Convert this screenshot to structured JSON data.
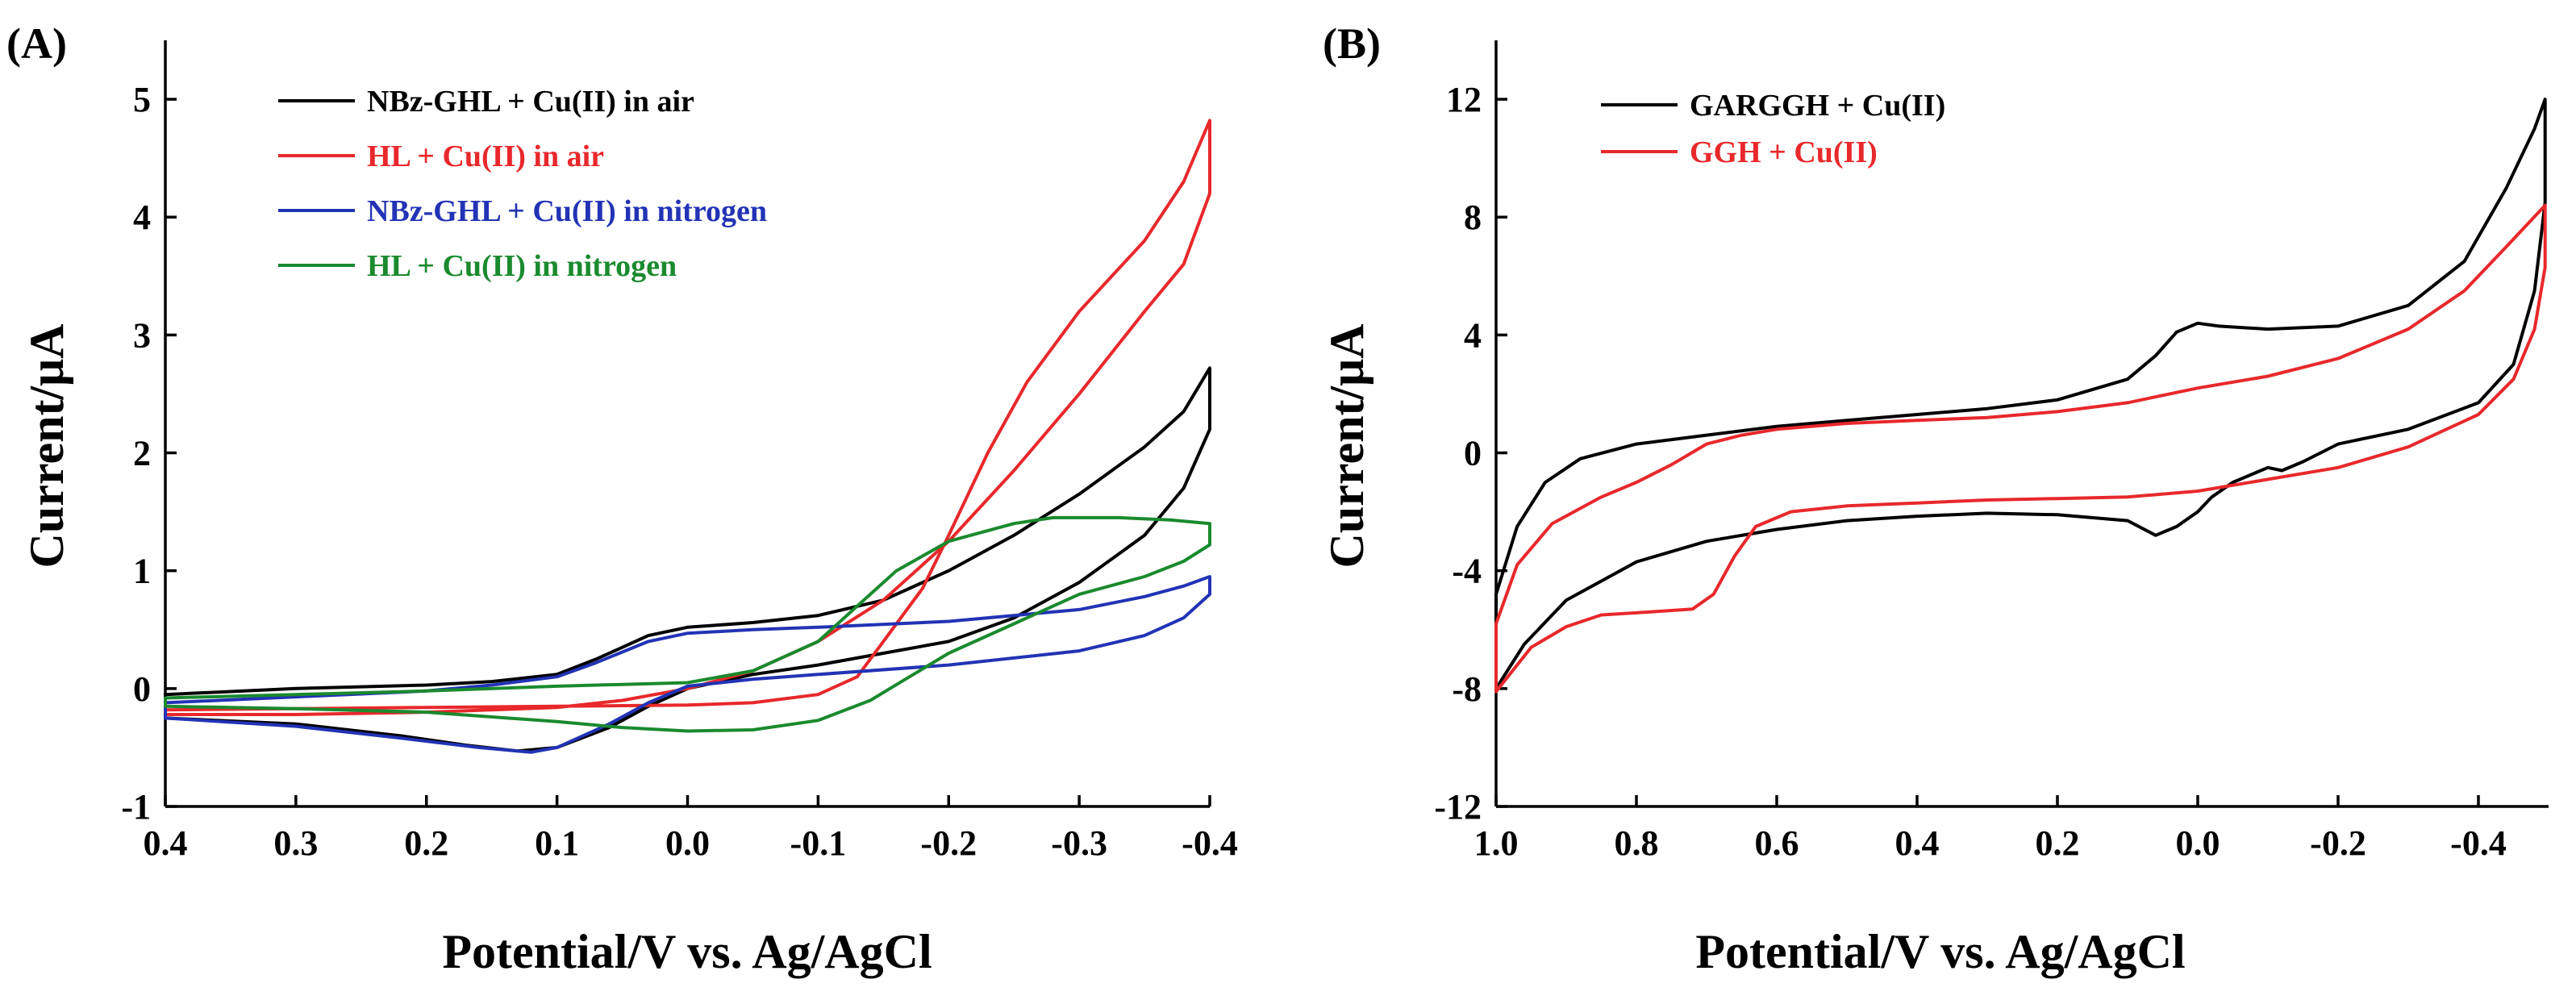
{
  "chart_data": [
    {
      "panel_label": "(A)",
      "type": "line",
      "xlabel": "Potential/V vs. Ag/AgCl",
      "ylabel": "Current/μA",
      "xlim": [
        0.4,
        -0.4
      ],
      "ylim": [
        -1,
        5.5
      ],
      "xticks": [
        0.4,
        0.3,
        0.2,
        0.1,
        0.0,
        -0.1,
        -0.2,
        -0.3,
        -0.4
      ],
      "xtick_labels": [
        "0.4",
        "0.3",
        "0.2",
        "0.1",
        "0.0",
        "-0.1",
        "-0.2",
        "-0.3",
        "-0.4"
      ],
      "yticks": [
        -1,
        0,
        1,
        2,
        3,
        4,
        5
      ],
      "ytick_labels": [
        "-1",
        "0",
        "1",
        "2",
        "3",
        "4",
        "5"
      ],
      "legend_position": "top-left",
      "series": [
        {
          "name": "NBz-GHL + Cu(II) in air",
          "color": "#000000",
          "points": [
            [
              0.4,
              -0.05
            ],
            [
              0.3,
              0.0
            ],
            [
              0.2,
              0.03
            ],
            [
              0.15,
              0.06
            ],
            [
              0.1,
              0.12
            ],
            [
              0.07,
              0.25
            ],
            [
              0.03,
              0.45
            ],
            [
              0.0,
              0.52
            ],
            [
              -0.05,
              0.56
            ],
            [
              -0.1,
              0.62
            ],
            [
              -0.15,
              0.75
            ],
            [
              -0.2,
              1.0
            ],
            [
              -0.25,
              1.3
            ],
            [
              -0.3,
              1.65
            ],
            [
              -0.35,
              2.05
            ],
            [
              -0.38,
              2.35
            ],
            [
              -0.4,
              2.72
            ],
            [
              -0.4,
              2.2
            ],
            [
              -0.38,
              1.7
            ],
            [
              -0.35,
              1.3
            ],
            [
              -0.3,
              0.9
            ],
            [
              -0.25,
              0.6
            ],
            [
              -0.2,
              0.4
            ],
            [
              -0.15,
              0.3
            ],
            [
              -0.1,
              0.2
            ],
            [
              -0.05,
              0.12
            ],
            [
              0.0,
              0.0
            ],
            [
              0.03,
              -0.15
            ],
            [
              0.06,
              -0.33
            ],
            [
              0.1,
              -0.5
            ],
            [
              0.13,
              -0.53
            ],
            [
              0.17,
              -0.48
            ],
            [
              0.22,
              -0.4
            ],
            [
              0.3,
              -0.3
            ],
            [
              0.4,
              -0.25
            ]
          ]
        },
        {
          "name": "HL + Cu(II) in air",
          "color": "#e8282b",
          "points": [
            [
              0.4,
              -0.18
            ],
            [
              0.3,
              -0.17
            ],
            [
              0.2,
              -0.16
            ],
            [
              0.1,
              -0.15
            ],
            [
              0.0,
              -0.14
            ],
            [
              -0.05,
              -0.12
            ],
            [
              -0.1,
              -0.05
            ],
            [
              -0.13,
              0.1
            ],
            [
              -0.15,
              0.4
            ],
            [
              -0.18,
              0.85
            ],
            [
              -0.2,
              1.3
            ],
            [
              -0.23,
              2.0
            ],
            [
              -0.26,
              2.6
            ],
            [
              -0.3,
              3.2
            ],
            [
              -0.35,
              3.8
            ],
            [
              -0.38,
              4.3
            ],
            [
              -0.4,
              4.82
            ],
            [
              -0.4,
              4.2
            ],
            [
              -0.38,
              3.6
            ],
            [
              -0.35,
              3.2
            ],
            [
              -0.3,
              2.5
            ],
            [
              -0.25,
              1.85
            ],
            [
              -0.2,
              1.25
            ],
            [
              -0.15,
              0.75
            ],
            [
              -0.1,
              0.4
            ],
            [
              -0.05,
              0.15
            ],
            [
              0.0,
              0.0
            ],
            [
              0.05,
              -0.1
            ],
            [
              0.1,
              -0.16
            ],
            [
              0.2,
              -0.2
            ],
            [
              0.3,
              -0.22
            ],
            [
              0.4,
              -0.22
            ]
          ]
        },
        {
          "name": "NBz-GHL + Cu(II) in nitrogen",
          "color": "#2233b5",
          "points": [
            [
              0.4,
              -0.12
            ],
            [
              0.3,
              -0.07
            ],
            [
              0.2,
              -0.02
            ],
            [
              0.15,
              0.03
            ],
            [
              0.1,
              0.1
            ],
            [
              0.07,
              0.22
            ],
            [
              0.03,
              0.4
            ],
            [
              0.0,
              0.47
            ],
            [
              -0.05,
              0.5
            ],
            [
              -0.1,
              0.52
            ],
            [
              -0.2,
              0.57
            ],
            [
              -0.3,
              0.67
            ],
            [
              -0.35,
              0.78
            ],
            [
              -0.38,
              0.87
            ],
            [
              -0.4,
              0.95
            ],
            [
              -0.4,
              0.8
            ],
            [
              -0.38,
              0.6
            ],
            [
              -0.35,
              0.45
            ],
            [
              -0.3,
              0.32
            ],
            [
              -0.2,
              0.2
            ],
            [
              -0.1,
              0.12
            ],
            [
              -0.05,
              0.08
            ],
            [
              0.0,
              0.02
            ],
            [
              0.03,
              -0.12
            ],
            [
              0.06,
              -0.3
            ],
            [
              0.1,
              -0.5
            ],
            [
              0.12,
              -0.54
            ],
            [
              0.16,
              -0.5
            ],
            [
              0.22,
              -0.42
            ],
            [
              0.3,
              -0.32
            ],
            [
              0.4,
              -0.25
            ]
          ]
        },
        {
          "name": "HL + Cu(II) in nitrogen",
          "color": "#1a8a2e",
          "points": [
            [
              0.4,
              -0.08
            ],
            [
              0.3,
              -0.05
            ],
            [
              0.2,
              -0.02
            ],
            [
              0.1,
              0.02
            ],
            [
              0.0,
              0.05
            ],
            [
              -0.05,
              0.15
            ],
            [
              -0.1,
              0.4
            ],
            [
              -0.13,
              0.7
            ],
            [
              -0.16,
              1.0
            ],
            [
              -0.2,
              1.25
            ],
            [
              -0.25,
              1.4
            ],
            [
              -0.28,
              1.45
            ],
            [
              -0.33,
              1.45
            ],
            [
              -0.37,
              1.43
            ],
            [
              -0.4,
              1.4
            ],
            [
              -0.4,
              1.22
            ],
            [
              -0.38,
              1.08
            ],
            [
              -0.35,
              0.95
            ],
            [
              -0.3,
              0.8
            ],
            [
              -0.25,
              0.55
            ],
            [
              -0.2,
              0.3
            ],
            [
              -0.17,
              0.1
            ],
            [
              -0.14,
              -0.1
            ],
            [
              -0.1,
              -0.27
            ],
            [
              -0.05,
              -0.35
            ],
            [
              0.0,
              -0.36
            ],
            [
              0.05,
              -0.33
            ],
            [
              0.1,
              -0.28
            ],
            [
              0.2,
              -0.2
            ],
            [
              0.3,
              -0.17
            ],
            [
              0.4,
              -0.15
            ]
          ]
        }
      ]
    },
    {
      "panel_label": "(B)",
      "type": "line",
      "xlabel": "Potential/V vs. Ag/AgCl",
      "ylabel": "Current/μA",
      "xlim": [
        1.0,
        -0.5
      ],
      "ylim": [
        -12,
        14
      ],
      "xticks": [
        1.0,
        0.8,
        0.6,
        0.4,
        0.2,
        0.0,
        -0.2,
        -0.4
      ],
      "xtick_labels": [
        "1.0",
        "0.8",
        "0.6",
        "0.4",
        "0.2",
        "0.0",
        "-0.2",
        "-0.4"
      ],
      "yticks": [
        -12,
        -8,
        -4,
        0,
        4,
        8,
        12
      ],
      "ytick_labels": [
        "-12",
        "-8",
        "-4",
        "0",
        "4",
        "8",
        "12"
      ],
      "legend_position": "top-left",
      "series": [
        {
          "name": "GARGGH + Cu(II)",
          "color": "#000000",
          "points": [
            [
              1.0,
              -4.8
            ],
            [
              0.97,
              -2.5
            ],
            [
              0.93,
              -1.0
            ],
            [
              0.88,
              -0.2
            ],
            [
              0.8,
              0.3
            ],
            [
              0.7,
              0.6
            ],
            [
              0.6,
              0.9
            ],
            [
              0.5,
              1.1
            ],
            [
              0.4,
              1.3
            ],
            [
              0.3,
              1.5
            ],
            [
              0.2,
              1.8
            ],
            [
              0.1,
              2.5
            ],
            [
              0.06,
              3.3
            ],
            [
              0.03,
              4.1
            ],
            [
              0.0,
              4.4
            ],
            [
              -0.03,
              4.3
            ],
            [
              -0.1,
              4.2
            ],
            [
              -0.2,
              4.3
            ],
            [
              -0.3,
              5.0
            ],
            [
              -0.38,
              6.5
            ],
            [
              -0.44,
              9.0
            ],
            [
              -0.48,
              11.0
            ],
            [
              -0.495,
              12.0
            ],
            [
              -0.495,
              8.5
            ],
            [
              -0.48,
              5.5
            ],
            [
              -0.45,
              3.0
            ],
            [
              -0.4,
              1.7
            ],
            [
              -0.3,
              0.8
            ],
            [
              -0.2,
              0.3
            ],
            [
              -0.15,
              -0.3
            ],
            [
              -0.12,
              -0.6
            ],
            [
              -0.1,
              -0.5
            ],
            [
              -0.08,
              -0.7
            ],
            [
              -0.05,
              -1.0
            ],
            [
              -0.02,
              -1.5
            ],
            [
              0.0,
              -2.0
            ],
            [
              0.03,
              -2.5
            ],
            [
              0.06,
              -2.8
            ],
            [
              0.1,
              -2.3
            ],
            [
              0.2,
              -2.1
            ],
            [
              0.3,
              -2.05
            ],
            [
              0.4,
              -2.15
            ],
            [
              0.5,
              -2.3
            ],
            [
              0.6,
              -2.6
            ],
            [
              0.7,
              -3.0
            ],
            [
              0.8,
              -3.7
            ],
            [
              0.9,
              -5.0
            ],
            [
              0.96,
              -6.5
            ],
            [
              1.0,
              -8.0
            ]
          ]
        },
        {
          "name": "GGH + Cu(II)",
          "color": "#e8282b",
          "points": [
            [
              1.0,
              -5.8
            ],
            [
              0.97,
              -3.8
            ],
            [
              0.92,
              -2.4
            ],
            [
              0.85,
              -1.5
            ],
            [
              0.8,
              -1.0
            ],
            [
              0.75,
              -0.4
            ],
            [
              0.7,
              0.3
            ],
            [
              0.65,
              0.6
            ],
            [
              0.6,
              0.8
            ],
            [
              0.5,
              1.0
            ],
            [
              0.4,
              1.1
            ],
            [
              0.3,
              1.2
            ],
            [
              0.2,
              1.4
            ],
            [
              0.1,
              1.7
            ],
            [
              0.0,
              2.2
            ],
            [
              -0.1,
              2.6
            ],
            [
              -0.2,
              3.2
            ],
            [
              -0.3,
              4.2
            ],
            [
              -0.38,
              5.5
            ],
            [
              -0.44,
              7.0
            ],
            [
              -0.495,
              8.4
            ],
            [
              -0.495,
              6.3
            ],
            [
              -0.48,
              4.2
            ],
            [
              -0.45,
              2.5
            ],
            [
              -0.4,
              1.3
            ],
            [
              -0.3,
              0.2
            ],
            [
              -0.2,
              -0.5
            ],
            [
              -0.1,
              -0.9
            ],
            [
              0.0,
              -1.3
            ],
            [
              0.1,
              -1.5
            ],
            [
              0.2,
              -1.55
            ],
            [
              0.3,
              -1.6
            ],
            [
              0.4,
              -1.7
            ],
            [
              0.5,
              -1.8
            ],
            [
              0.58,
              -2.0
            ],
            [
              0.63,
              -2.5
            ],
            [
              0.66,
              -3.5
            ],
            [
              0.69,
              -4.8
            ],
            [
              0.72,
              -5.3
            ],
            [
              0.78,
              -5.4
            ],
            [
              0.85,
              -5.5
            ],
            [
              0.9,
              -5.9
            ],
            [
              0.95,
              -6.6
            ],
            [
              1.0,
              -8.1
            ]
          ]
        }
      ]
    }
  ]
}
